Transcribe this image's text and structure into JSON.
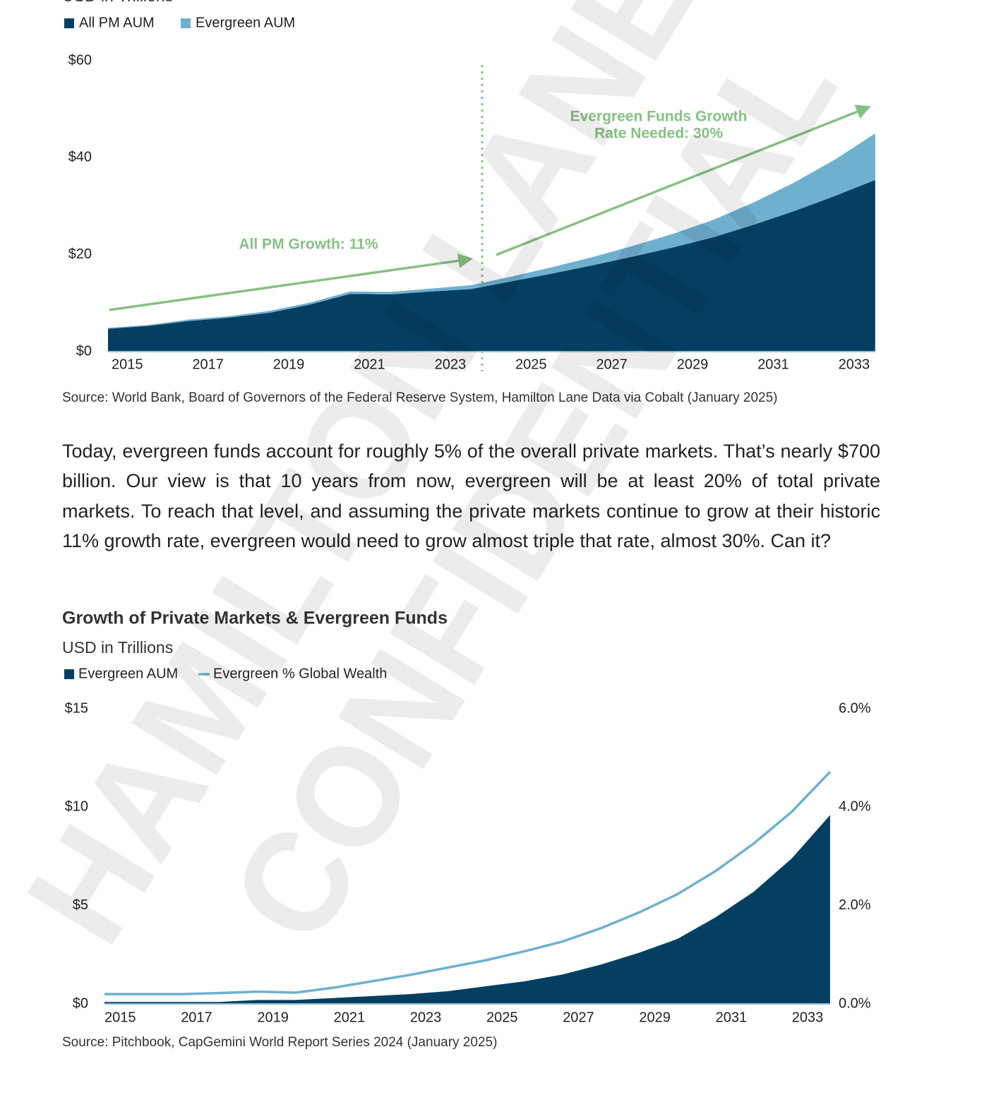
{
  "chart_data": [
    {
      "type": "area",
      "stacked": true,
      "subtitle": "USD in Trillions",
      "categories": [
        "2015",
        null,
        "2017",
        null,
        "2019",
        null,
        "2021",
        null,
        "2023",
        null,
        "2025",
        null,
        "2027",
        null,
        "2029",
        null,
        "2031",
        null,
        "2033",
        null
      ],
      "series": [
        {
          "name": "All PM AUM",
          "color": "#043f62",
          "values": [
            4.7,
            5.3,
            6.3,
            7.0,
            8.0,
            9.7,
            11.9,
            11.8,
            12.4,
            12.9,
            14.5,
            16.1,
            17.8,
            19.6,
            21.5,
            23.6,
            26.2,
            29.0,
            32.1,
            35.4
          ]
        },
        {
          "name": "Evergreen AUM",
          "color": "#6fb0cf",
          "values": [
            0.2,
            0.2,
            0.3,
            0.3,
            0.4,
            0.4,
            0.5,
            0.5,
            0.6,
            0.8,
            1.0,
            1.3,
            1.7,
            2.2,
            2.8,
            3.6,
            4.6,
            5.9,
            7.5,
            9.6
          ]
        }
      ],
      "ylim": [
        0,
        60
      ],
      "yticks": [
        {
          "value": 0,
          "label": "$0"
        },
        {
          "value": 20,
          "label": "$20"
        },
        {
          "value": 40,
          "label": "$40"
        },
        {
          "value": 60,
          "label": "$60"
        }
      ],
      "annotations": [
        {
          "lines": [
            "All PM Growth: 11%"
          ],
          "color": "#86c083"
        },
        {
          "lines": [
            "Evergreen Funds Growth",
            "Rate Needed: 30%"
          ],
          "color": "#86c083"
        }
      ],
      "source": "Source: World Bank, Board of Governors of the Federal Reserve System, Hamilton Lane Data via Cobalt (January 2025)"
    },
    {
      "type": "area",
      "title": "Growth of Private Markets & Evergreen Funds",
      "subtitle": "USD in Trillions",
      "categories": [
        "2015",
        null,
        "2017",
        null,
        "2019",
        null,
        "2021",
        null,
        "2023",
        null,
        "2025",
        null,
        "2027",
        null,
        "2029",
        null,
        "2031",
        null,
        "2033",
        null
      ],
      "series": [
        {
          "name": "Evergreen AUM",
          "type": "area",
          "color": "#043f62",
          "values": [
            0.1,
            0.1,
            0.1,
            0.1,
            0.2,
            0.2,
            0.3,
            0.4,
            0.5,
            0.65,
            0.9,
            1.15,
            1.5,
            2.0,
            2.6,
            3.3,
            4.4,
            5.7,
            7.4,
            9.6
          ]
        },
        {
          "name": "Evergreen % Global Wealth",
          "type": "line",
          "axis": "y2",
          "color": "#6fb0cf",
          "values": [
            0.2,
            0.2,
            0.2,
            0.22,
            0.25,
            0.23,
            0.33,
            0.46,
            0.59,
            0.74,
            0.89,
            1.07,
            1.27,
            1.54,
            1.86,
            2.23,
            2.7,
            3.26,
            3.91,
            4.72
          ]
        }
      ],
      "ylim": [
        0,
        15
      ],
      "yticks": [
        {
          "value": 0,
          "label": "$0"
        },
        {
          "value": 5,
          "label": "$5"
        },
        {
          "value": 10,
          "label": "$10"
        },
        {
          "value": 15,
          "label": "$15"
        }
      ],
      "y2lim": [
        0,
        6
      ],
      "y2ticks": [
        {
          "value": 0,
          "label": "0.0%"
        },
        {
          "value": 2,
          "label": "2.0%"
        },
        {
          "value": 4,
          "label": "4.0%"
        },
        {
          "value": 6,
          "label": "6.0%"
        }
      ],
      "source": "Source:  Pitchbook, CapGemini World Report Series 2024 (January 2025)"
    }
  ],
  "paragraph": "Today, evergreen funds account for roughly 5% of the overall private markets. That’s nearly $700 billion. Our view is that 10 years from now, evergreen will be at least 20% of total private markets. To reach that level, and assuming the private markets continue to grow at their historic 11% growth rate, evergreen would need to grow almost triple that rate, almost 30%. Can it?",
  "watermark": [
    "HAMILTON LANE",
    "CONFIDENTIAL"
  ]
}
